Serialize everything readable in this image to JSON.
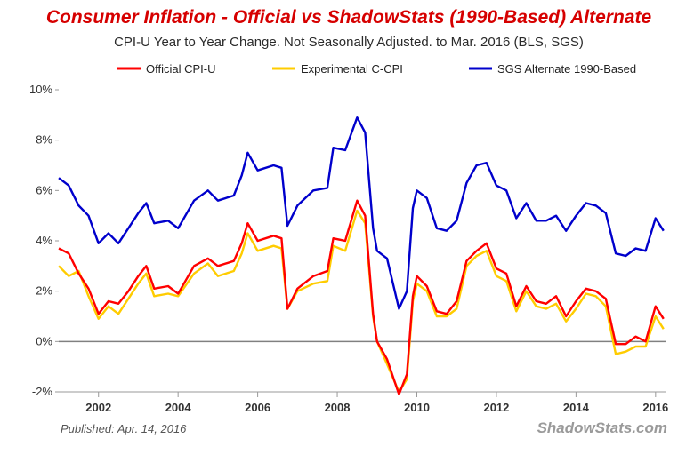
{
  "chart_data": {
    "type": "line",
    "title": "Consumer Inflation - Official vs ShadowStats (1990-Based) Alternate",
    "subtitle": "CPI-U Year to Year Change. Not Seasonally Adjusted. to Mar. 2016  (BLS, SGS)",
    "xlabel": "",
    "ylabel": "",
    "xlim": [
      2001.0,
      2016.25
    ],
    "ylim": [
      -2,
      10
    ],
    "x_ticks": [
      "2002",
      "2004",
      "2006",
      "2008",
      "2010",
      "2012",
      "2014",
      "2016"
    ],
    "y_ticks": [
      "10%",
      "8%",
      "6%",
      "4%",
      "2%",
      "0%",
      "-2%"
    ],
    "legend_position": "top",
    "grid": false,
    "zero_line": true,
    "series": [
      {
        "name": "Official CPI-U",
        "color": "#ff0000",
        "points": [
          [
            2001.0,
            3.7
          ],
          [
            2001.25,
            3.5
          ],
          [
            2001.5,
            2.7
          ],
          [
            2001.75,
            2.1
          ],
          [
            2002.0,
            1.1
          ],
          [
            2002.25,
            1.6
          ],
          [
            2002.5,
            1.5
          ],
          [
            2002.75,
            2.0
          ],
          [
            2003.0,
            2.6
          ],
          [
            2003.2,
            3.0
          ],
          [
            2003.4,
            2.1
          ],
          [
            2003.75,
            2.2
          ],
          [
            2004.0,
            1.9
          ],
          [
            2004.4,
            3.0
          ],
          [
            2004.75,
            3.3
          ],
          [
            2005.0,
            3.0
          ],
          [
            2005.4,
            3.2
          ],
          [
            2005.6,
            3.9
          ],
          [
            2005.75,
            4.7
          ],
          [
            2006.0,
            4.0
          ],
          [
            2006.4,
            4.2
          ],
          [
            2006.6,
            4.1
          ],
          [
            2006.75,
            1.3
          ],
          [
            2007.0,
            2.1
          ],
          [
            2007.4,
            2.6
          ],
          [
            2007.75,
            2.8
          ],
          [
            2007.9,
            4.1
          ],
          [
            2008.2,
            4.0
          ],
          [
            2008.5,
            5.6
          ],
          [
            2008.7,
            5.0
          ],
          [
            2008.9,
            1.1
          ],
          [
            2009.0,
            0.0
          ],
          [
            2009.25,
            -0.7
          ],
          [
            2009.55,
            -2.1
          ],
          [
            2009.75,
            -1.3
          ],
          [
            2009.9,
            1.8
          ],
          [
            2010.0,
            2.6
          ],
          [
            2010.25,
            2.2
          ],
          [
            2010.5,
            1.2
          ],
          [
            2010.75,
            1.1
          ],
          [
            2011.0,
            1.6
          ],
          [
            2011.25,
            3.2
          ],
          [
            2011.5,
            3.6
          ],
          [
            2011.75,
            3.9
          ],
          [
            2012.0,
            2.9
          ],
          [
            2012.25,
            2.7
          ],
          [
            2012.5,
            1.4
          ],
          [
            2012.75,
            2.2
          ],
          [
            2013.0,
            1.6
          ],
          [
            2013.25,
            1.5
          ],
          [
            2013.5,
            1.8
          ],
          [
            2013.75,
            1.0
          ],
          [
            2014.0,
            1.6
          ],
          [
            2014.25,
            2.1
          ],
          [
            2014.5,
            2.0
          ],
          [
            2014.75,
            1.7
          ],
          [
            2015.0,
            -0.1
          ],
          [
            2015.25,
            -0.1
          ],
          [
            2015.5,
            0.2
          ],
          [
            2015.75,
            0.0
          ],
          [
            2016.0,
            1.4
          ],
          [
            2016.2,
            0.9
          ]
        ]
      },
      {
        "name": "Experimental C-CPI",
        "color": "#ffcc00",
        "points": [
          [
            2001.0,
            3.0
          ],
          [
            2001.25,
            2.6
          ],
          [
            2001.5,
            2.8
          ],
          [
            2001.75,
            1.8
          ],
          [
            2002.0,
            0.9
          ],
          [
            2002.25,
            1.4
          ],
          [
            2002.5,
            1.1
          ],
          [
            2002.75,
            1.7
          ],
          [
            2003.0,
            2.3
          ],
          [
            2003.2,
            2.7
          ],
          [
            2003.4,
            1.8
          ],
          [
            2003.75,
            1.9
          ],
          [
            2004.0,
            1.8
          ],
          [
            2004.4,
            2.7
          ],
          [
            2004.75,
            3.1
          ],
          [
            2005.0,
            2.6
          ],
          [
            2005.4,
            2.8
          ],
          [
            2005.6,
            3.5
          ],
          [
            2005.75,
            4.3
          ],
          [
            2006.0,
            3.6
          ],
          [
            2006.4,
            3.8
          ],
          [
            2006.6,
            3.7
          ],
          [
            2006.75,
            1.3
          ],
          [
            2007.0,
            2.0
          ],
          [
            2007.4,
            2.3
          ],
          [
            2007.75,
            2.4
          ],
          [
            2007.9,
            3.8
          ],
          [
            2008.2,
            3.6
          ],
          [
            2008.5,
            5.2
          ],
          [
            2008.7,
            4.7
          ],
          [
            2008.9,
            1.0
          ],
          [
            2009.0,
            0.0
          ],
          [
            2009.25,
            -0.9
          ],
          [
            2009.55,
            -2.0
          ],
          [
            2009.75,
            -1.5
          ],
          [
            2009.9,
            1.6
          ],
          [
            2010.0,
            2.3
          ],
          [
            2010.25,
            2.0
          ],
          [
            2010.5,
            1.0
          ],
          [
            2010.75,
            1.0
          ],
          [
            2011.0,
            1.3
          ],
          [
            2011.25,
            3.0
          ],
          [
            2011.5,
            3.4
          ],
          [
            2011.75,
            3.6
          ],
          [
            2012.0,
            2.6
          ],
          [
            2012.25,
            2.4
          ],
          [
            2012.5,
            1.2
          ],
          [
            2012.75,
            2.0
          ],
          [
            2013.0,
            1.4
          ],
          [
            2013.25,
            1.3
          ],
          [
            2013.5,
            1.5
          ],
          [
            2013.75,
            0.8
          ],
          [
            2014.0,
            1.3
          ],
          [
            2014.25,
            1.9
          ],
          [
            2014.5,
            1.8
          ],
          [
            2014.75,
            1.4
          ],
          [
            2015.0,
            -0.5
          ],
          [
            2015.25,
            -0.4
          ],
          [
            2015.5,
            -0.2
          ],
          [
            2015.75,
            -0.2
          ],
          [
            2016.0,
            1.0
          ],
          [
            2016.2,
            0.5
          ]
        ]
      },
      {
        "name": "SGS  Alternate 1990-Based",
        "color": "#0000cc",
        "points": [
          [
            2001.0,
            6.5
          ],
          [
            2001.25,
            6.2
          ],
          [
            2001.5,
            5.4
          ],
          [
            2001.75,
            5.0
          ],
          [
            2002.0,
            3.9
          ],
          [
            2002.25,
            4.3
          ],
          [
            2002.5,
            3.9
          ],
          [
            2002.75,
            4.5
          ],
          [
            2003.0,
            5.1
          ],
          [
            2003.2,
            5.5
          ],
          [
            2003.4,
            4.7
          ],
          [
            2003.75,
            4.8
          ],
          [
            2004.0,
            4.5
          ],
          [
            2004.4,
            5.6
          ],
          [
            2004.75,
            6.0
          ],
          [
            2005.0,
            5.6
          ],
          [
            2005.4,
            5.8
          ],
          [
            2005.6,
            6.6
          ],
          [
            2005.75,
            7.5
          ],
          [
            2006.0,
            6.8
          ],
          [
            2006.4,
            7.0
          ],
          [
            2006.6,
            6.9
          ],
          [
            2006.75,
            4.6
          ],
          [
            2007.0,
            5.4
          ],
          [
            2007.4,
            6.0
          ],
          [
            2007.75,
            6.1
          ],
          [
            2007.9,
            7.7
          ],
          [
            2008.2,
            7.6
          ],
          [
            2008.5,
            8.9
          ],
          [
            2008.7,
            8.3
          ],
          [
            2008.9,
            4.5
          ],
          [
            2009.0,
            3.6
          ],
          [
            2009.25,
            3.3
          ],
          [
            2009.55,
            1.3
          ],
          [
            2009.75,
            2.0
          ],
          [
            2009.9,
            5.3
          ],
          [
            2010.0,
            6.0
          ],
          [
            2010.25,
            5.7
          ],
          [
            2010.5,
            4.5
          ],
          [
            2010.75,
            4.4
          ],
          [
            2011.0,
            4.8
          ],
          [
            2011.25,
            6.3
          ],
          [
            2011.5,
            7.0
          ],
          [
            2011.75,
            7.1
          ],
          [
            2012.0,
            6.2
          ],
          [
            2012.25,
            6.0
          ],
          [
            2012.5,
            4.9
          ],
          [
            2012.75,
            5.5
          ],
          [
            2013.0,
            4.8
          ],
          [
            2013.25,
            4.8
          ],
          [
            2013.5,
            5.0
          ],
          [
            2013.75,
            4.4
          ],
          [
            2014.0,
            5.0
          ],
          [
            2014.25,
            5.5
          ],
          [
            2014.5,
            5.4
          ],
          [
            2014.75,
            5.1
          ],
          [
            2015.0,
            3.5
          ],
          [
            2015.25,
            3.4
          ],
          [
            2015.5,
            3.7
          ],
          [
            2015.75,
            3.6
          ],
          [
            2016.0,
            4.9
          ],
          [
            2016.2,
            4.4
          ]
        ]
      }
    ]
  },
  "footer": {
    "published": "Published: Apr. 14, 2016",
    "brand": "ShadowStats.com"
  },
  "colors": {
    "title": "#d60000",
    "subtitle": "#2a2a2a",
    "zero_line": "#808080",
    "axis": "#999999"
  }
}
